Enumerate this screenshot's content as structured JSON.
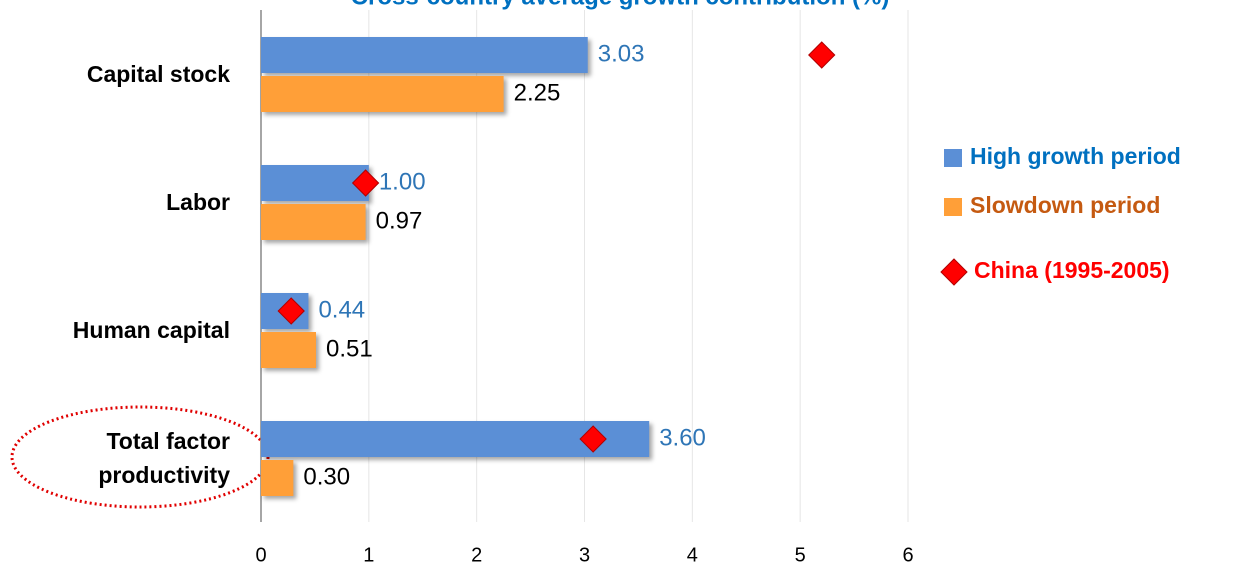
{
  "chart_data": {
    "type": "bar",
    "orientation": "horizontal",
    "title": "Cross-country average growth contribution (%)",
    "categories": [
      "Capital stock",
      "Labor",
      "Human capital",
      "Total factor productivity"
    ],
    "series": [
      {
        "name": "High growth period",
        "color": "#5b8fd6",
        "label_color": "#2e75b6",
        "values": [
          3.03,
          1.0,
          0.44,
          3.6
        ],
        "value_labels": [
          "3.03",
          "1.00",
          "0.44",
          "3.60"
        ]
      },
      {
        "name": "Slowdown period",
        "color": "#ff9f38",
        "label_color": "#000000",
        "values": [
          2.25,
          0.97,
          0.51,
          0.3
        ],
        "value_labels": [
          "2.25",
          "0.97",
          "0.51",
          "0.30"
        ]
      },
      {
        "name": "China (1995-2005)",
        "type": "scatter",
        "color": "#ff0000",
        "values": [
          5.2,
          0.97,
          0.28,
          3.08
        ]
      }
    ],
    "xlim": [
      0,
      6
    ],
    "xticks": [
      0,
      1,
      2,
      3,
      4,
      5,
      6
    ],
    "grid": true,
    "legend": "right"
  }
}
